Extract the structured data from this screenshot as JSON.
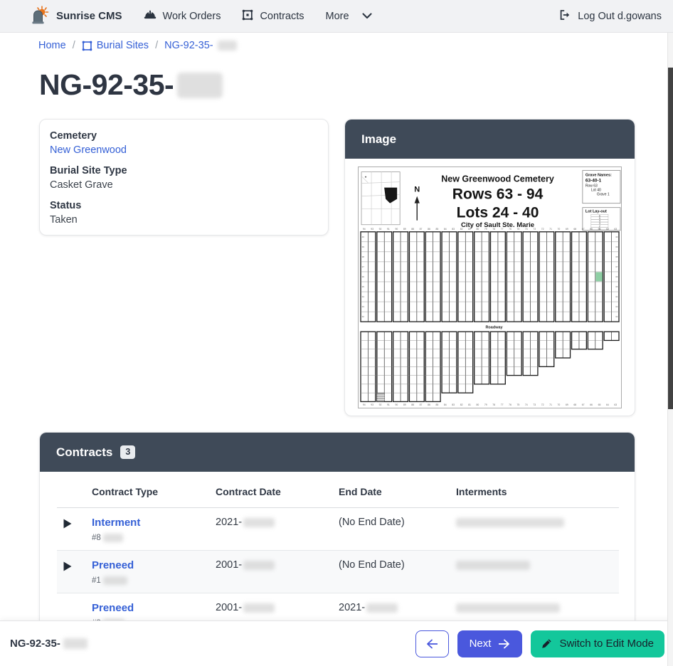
{
  "colors": {
    "accent": "#4a58dd",
    "teal": "#13c79b",
    "header_dark": "#3f4a58",
    "link": "#3560d6",
    "navbar_bg": "#f1f2f4",
    "highlight_green": "#8ecfa4"
  },
  "navbar": {
    "brand": "Sunrise CMS",
    "work_orders": "Work Orders",
    "contracts": "Contracts",
    "more": "More",
    "logout": "Log Out d.gowans"
  },
  "breadcrumb": {
    "home": "Home",
    "separator": "/",
    "burial_sites": "Burial Sites",
    "current": "NG-92-35-"
  },
  "page": {
    "title": "NG-92-35-"
  },
  "details": {
    "cemetery_label": "Cemetery",
    "cemetery_value": "New Greenwood",
    "type_label": "Burial Site Type",
    "type_value": "Casket Grave",
    "status_label": "Status",
    "status_value": "Taken"
  },
  "image_panel": {
    "title": "Image",
    "map": {
      "title": "New Greenwood Cemetery",
      "subtitle1": "Rows 63 - 94",
      "subtitle2": "Lots 24 - 40",
      "subtitle3": "City of Sault Ste. Marie",
      "north_label": "N",
      "grave_names_title": "Grave Names:",
      "grave_name": "63-40-1",
      "grave_row": "Row 63",
      "grave_lot": "Lot 40",
      "grave_grave": "Grave 1",
      "lot_layout_title": "Lot Lay-out",
      "lot_layout_rows": [
        "6",
        "5",
        "4",
        "3",
        "2",
        "1"
      ],
      "roadway_label": "Roadway",
      "grid": {
        "groups": 16,
        "top_rows": 9,
        "bottom_rows": 8,
        "bottom_heights": [
          8,
          8,
          8,
          8,
          8,
          7,
          7,
          6,
          6,
          5,
          5,
          4,
          3,
          2,
          2,
          1
        ],
        "axis_start": 94,
        "lot_start": 40,
        "highlight": {
          "group": 14,
          "sub": 1,
          "row": 4
        },
        "hatch": {
          "group": 1,
          "row": 7
        }
      }
    }
  },
  "contracts": {
    "title": "Contracts",
    "count": "3",
    "columns": [
      "Contract Type",
      "Contract Date",
      "End Date",
      "Interments"
    ],
    "rows": [
      {
        "type": "Interment",
        "number": "#8",
        "date": "2021-",
        "end": "(No End Date)"
      },
      {
        "type": "Preneed",
        "number": "#1",
        "date": "2001-",
        "end": "(No End Date)"
      },
      {
        "type": "Preneed",
        "number": "#8",
        "date": "2001-",
        "end": "2021-"
      }
    ]
  },
  "footer": {
    "title": "NG-92-35-",
    "next": "Next",
    "edit": "Switch to Edit Mode"
  }
}
